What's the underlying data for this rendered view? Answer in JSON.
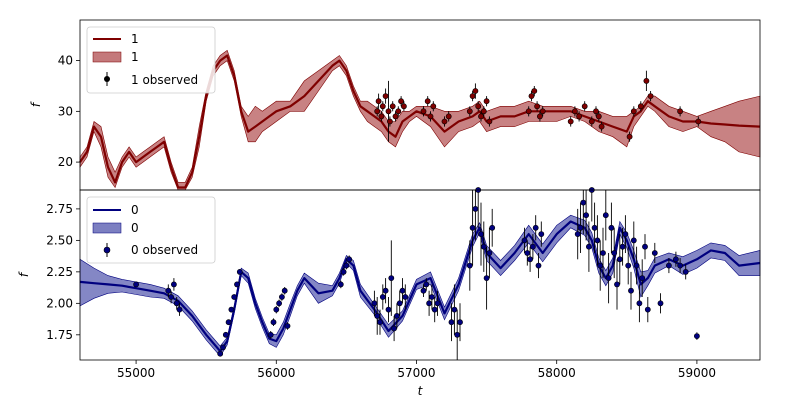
{
  "chart_data": [
    {
      "type": "line",
      "panel": "top",
      "ylabel": "f",
      "xlabel": "",
      "xlim": [
        54600,
        59450
      ],
      "ylim": [
        14.5,
        48
      ],
      "yticks": [
        "20",
        "30",
        "40"
      ],
      "ytick_values": [
        20,
        30,
        40
      ],
      "grid": false,
      "legend": {
        "placement": "top-left",
        "entries": [
          "1",
          "1",
          "1 observed"
        ]
      },
      "colors": {
        "line": "#7f0000",
        "band": "#b5585a",
        "points": "#7f0000"
      },
      "model": {
        "name": "1",
        "x": [
          54600,
          54650,
          54700,
          54750,
          54800,
          54850,
          54900,
          54950,
          55000,
          55050,
          55100,
          55150,
          55200,
          55250,
          55300,
          55350,
          55400,
          55450,
          55500,
          55550,
          55600,
          55650,
          55700,
          55750,
          55800,
          55850,
          55900,
          55950,
          56000,
          56100,
          56200,
          56300,
          56400,
          56450,
          56500,
          56550,
          56600,
          56650,
          56700,
          56750,
          56800,
          56850,
          56900,
          56950,
          57000,
          57100,
          57200,
          57300,
          57400,
          57450,
          57500,
          57600,
          57700,
          57800,
          57900,
          58000,
          58100,
          58200,
          58300,
          58400,
          58500,
          58550,
          58600,
          58650,
          58700,
          58800,
          58900,
          59000,
          59100,
          59200,
          59300,
          59450
        ],
        "y": [
          20,
          22,
          27,
          25,
          19,
          16,
          20,
          22,
          20,
          21,
          22,
          23,
          24,
          19,
          15,
          15,
          18,
          25,
          33,
          38,
          40,
          41,
          37,
          30,
          26,
          27,
          28,
          29,
          30,
          31,
          33,
          36,
          39,
          40,
          38,
          34,
          31,
          30,
          29,
          28,
          26,
          25,
          28,
          29,
          30,
          29,
          26,
          28,
          29,
          30,
          28,
          29,
          29,
          30,
          30,
          30,
          30,
          29,
          28,
          27,
          26,
          29,
          30,
          32,
          31,
          29,
          28,
          28,
          27.6,
          27.4,
          27.2,
          27
        ]
      },
      "band": {
        "name": "1",
        "upper": [
          21,
          23,
          28,
          27,
          21,
          18,
          21,
          23,
          21,
          22,
          23,
          24,
          25,
          20,
          16,
          16,
          19,
          27,
          34,
          39,
          41,
          42,
          38,
          31,
          29,
          31,
          30,
          31,
          32,
          32,
          36,
          38,
          40,
          41,
          39,
          35,
          32,
          32,
          31,
          30,
          28,
          28,
          30,
          30,
          31,
          31,
          30,
          30,
          31,
          32,
          30,
          31,
          31,
          32,
          31,
          31,
          31,
          30,
          30,
          29,
          29,
          30,
          31,
          33,
          33,
          31,
          30,
          29,
          30,
          31,
          32,
          33
        ],
        "lower": [
          19,
          21,
          26,
          23,
          17,
          15,
          19,
          21,
          19,
          20,
          21,
          22,
          23,
          18,
          14,
          14,
          17,
          23,
          32,
          37,
          39,
          40,
          36,
          29,
          24,
          24,
          26,
          27,
          28,
          30,
          30,
          34,
          38,
          39,
          37,
          33,
          30,
          28,
          27,
          26,
          24,
          23,
          26,
          28,
          29,
          27,
          23,
          26,
          27,
          28,
          26,
          27,
          27,
          28,
          28,
          28,
          29,
          28,
          26,
          25,
          23,
          27,
          29,
          31,
          30,
          27,
          26,
          27,
          25,
          24,
          22,
          21
        ]
      },
      "observed": {
        "name": "1 observed",
        "x": [
          56720,
          56730,
          56750,
          56760,
          56780,
          56800,
          56810,
          56830,
          56850,
          56870,
          56890,
          56910,
          57050,
          57080,
          57100,
          57120,
          57200,
          57230,
          57380,
          57400,
          57420,
          57440,
          57460,
          57480,
          57500,
          57520,
          57800,
          57820,
          57840,
          57860,
          57880,
          57900,
          58100,
          58130,
          58160,
          58200,
          58250,
          58280,
          58300,
          58320,
          58520,
          58550,
          58600,
          58640,
          58670,
          58880,
          59010
        ],
        "y": [
          30,
          32,
          29,
          31,
          33,
          30,
          28,
          31,
          29,
          30,
          32,
          31,
          30,
          32,
          29,
          31,
          28,
          29,
          30,
          33,
          34,
          31,
          29,
          30,
          32,
          28,
          30,
          33,
          34,
          31,
          29,
          30,
          28,
          30,
          29,
          31,
          28,
          30,
          29,
          27,
          25,
          30,
          31,
          36,
          33,
          30,
          28
        ],
        "yerr": [
          1,
          1.5,
          1,
          1,
          1.5,
          6,
          1,
          1,
          1,
          1,
          1,
          1,
          1,
          1,
          1,
          1,
          1,
          1,
          1,
          1,
          1.5,
          1,
          1,
          1,
          1,
          1,
          1,
          1,
          1,
          1,
          1,
          1,
          1,
          1,
          1,
          1,
          1,
          1,
          1,
          1,
          1,
          1,
          1,
          2,
          1,
          1,
          1
        ]
      }
    },
    {
      "type": "line",
      "panel": "bottom",
      "ylabel": "f",
      "xlabel": "t",
      "xlim": [
        54600,
        59450
      ],
      "ylim": [
        1.55,
        2.9
      ],
      "yticks": [
        "1.75",
        "2.00",
        "2.25",
        "2.50",
        "2.75"
      ],
      "ytick_values": [
        1.75,
        2.0,
        2.25,
        2.5,
        2.75
      ],
      "xticks": [
        "55000",
        "56000",
        "57000",
        "58000",
        "59000"
      ],
      "xtick_values": [
        55000,
        56000,
        57000,
        58000,
        59000
      ],
      "grid": false,
      "legend": {
        "placement": "top-left",
        "entries": [
          "0",
          "0",
          "0 observed"
        ]
      },
      "colors": {
        "line": "#00007f",
        "band": "#5b5fb2",
        "points": "#00007f"
      },
      "model": {
        "name": "0",
        "x": [
          54600,
          54700,
          54800,
          54900,
          55000,
          55100,
          55200,
          55300,
          55400,
          55500,
          55600,
          55650,
          55700,
          55750,
          55800,
          55850,
          55900,
          55950,
          56000,
          56050,
          56100,
          56150,
          56200,
          56300,
          56400,
          56450,
          56500,
          56550,
          56600,
          56700,
          56800,
          56900,
          57000,
          57100,
          57200,
          57300,
          57400,
          57450,
          57500,
          57600,
          57700,
          57800,
          57900,
          58000,
          58100,
          58200,
          58250,
          58300,
          58350,
          58400,
          58450,
          58500,
          58550,
          58600,
          58650,
          58700,
          58800,
          58900,
          59000,
          59100,
          59200,
          59300,
          59450
        ],
        "y": [
          2.17,
          2.16,
          2.15,
          2.14,
          2.12,
          2.1,
          2.08,
          2.02,
          1.9,
          1.75,
          1.62,
          1.7,
          1.95,
          2.25,
          2.2,
          2.0,
          1.85,
          1.72,
          1.7,
          1.8,
          1.95,
          2.1,
          2.2,
          2.08,
          2.1,
          2.2,
          2.35,
          2.3,
          2.1,
          1.95,
          1.78,
          1.9,
          2.15,
          2.2,
          1.92,
          2.15,
          2.5,
          2.6,
          2.4,
          2.28,
          2.4,
          2.55,
          2.4,
          2.55,
          2.65,
          2.6,
          2.5,
          2.3,
          2.2,
          2.3,
          2.6,
          2.5,
          2.35,
          2.15,
          2.2,
          2.3,
          2.35,
          2.3,
          2.35,
          2.42,
          2.4,
          2.3,
          2.32
        ]
      },
      "band": {
        "name": "0",
        "upper": [
          2.35,
          2.28,
          2.22,
          2.19,
          2.17,
          2.15,
          2.12,
          2.06,
          1.94,
          1.79,
          1.66,
          1.73,
          1.98,
          2.28,
          2.24,
          2.04,
          1.89,
          1.76,
          1.75,
          1.85,
          2.0,
          2.14,
          2.24,
          2.16,
          2.14,
          2.24,
          2.38,
          2.34,
          2.15,
          1.99,
          1.83,
          1.94,
          2.19,
          2.25,
          1.97,
          2.2,
          2.55,
          2.64,
          2.46,
          2.34,
          2.46,
          2.62,
          2.47,
          2.62,
          2.7,
          2.66,
          2.56,
          2.36,
          2.26,
          2.36,
          2.65,
          2.56,
          2.42,
          2.25,
          2.26,
          2.36,
          2.4,
          2.37,
          2.42,
          2.48,
          2.46,
          2.38,
          2.42
        ],
        "lower": [
          1.98,
          2.04,
          2.08,
          2.09,
          2.07,
          2.05,
          2.04,
          1.98,
          1.86,
          1.71,
          1.58,
          1.67,
          1.92,
          2.22,
          2.16,
          1.96,
          1.81,
          1.68,
          1.65,
          1.75,
          1.9,
          2.06,
          2.16,
          2.0,
          2.06,
          2.16,
          2.32,
          2.26,
          2.05,
          1.91,
          1.73,
          1.86,
          2.11,
          2.15,
          1.87,
          2.1,
          2.45,
          2.56,
          2.34,
          2.22,
          2.34,
          2.48,
          2.33,
          2.48,
          2.6,
          2.54,
          2.44,
          2.24,
          2.14,
          2.24,
          2.55,
          2.44,
          2.28,
          2.05,
          2.14,
          2.24,
          2.3,
          2.23,
          2.28,
          2.36,
          2.34,
          2.22,
          2.22
        ]
      },
      "observed": {
        "name": "0 observed",
        "x": [
          55000,
          55230,
          55250,
          55270,
          55290,
          55310,
          55600,
          55620,
          55640,
          55660,
          55680,
          55700,
          55720,
          55740,
          55960,
          55980,
          56000,
          56020,
          56040,
          56060,
          56080,
          56460,
          56480,
          56500,
          56520,
          56700,
          56720,
          56740,
          56760,
          56780,
          56800,
          56820,
          56840,
          56860,
          56880,
          56900,
          56920,
          57050,
          57070,
          57090,
          57110,
          57130,
          57150,
          57250,
          57270,
          57290,
          57310,
          57380,
          57400,
          57420,
          57440,
          57460,
          57480,
          57500,
          57520,
          57540,
          57770,
          57790,
          57810,
          57830,
          57850,
          57870,
          57890,
          58150,
          58170,
          58190,
          58210,
          58230,
          58250,
          58270,
          58290,
          58310,
          58330,
          58350,
          58370,
          58390,
          58410,
          58430,
          58450,
          58470,
          58490,
          58510,
          58530,
          58550,
          58570,
          58590,
          58610,
          58630,
          58650,
          58700,
          58740,
          58800,
          58850,
          58880,
          58920,
          59000
        ],
        "y": [
          2.15,
          2.1,
          2.05,
          2.15,
          2.0,
          1.95,
          1.6,
          1.65,
          1.75,
          1.85,
          1.95,
          2.05,
          2.15,
          2.25,
          1.75,
          1.85,
          1.95,
          2.0,
          2.05,
          2.1,
          1.82,
          2.15,
          2.25,
          2.3,
          2.35,
          2.0,
          1.9,
          1.85,
          2.05,
          2.1,
          1.95,
          2.2,
          1.8,
          1.9,
          2.0,
          2.1,
          2.05,
          2.1,
          2.15,
          2.0,
          2.05,
          1.95,
          2.0,
          1.85,
          1.95,
          1.75,
          1.85,
          2.3,
          2.6,
          2.75,
          2.9,
          2.55,
          2.45,
          2.2,
          2.4,
          2.6,
          2.5,
          2.4,
          2.35,
          2.45,
          2.6,
          2.3,
          2.55,
          2.55,
          2.6,
          2.8,
          2.7,
          2.45,
          2.9,
          2.6,
          2.5,
          2.3,
          2.4,
          2.7,
          2.2,
          2.6,
          2.4,
          2.15,
          2.35,
          2.45,
          2.55,
          2.3,
          2.1,
          2.5,
          2.3,
          2.0,
          2.2,
          2.45,
          1.95,
          2.4,
          2.0,
          2.3,
          2.35,
          2.3,
          2.25,
          1.74
        ],
        "yerr": [
          0.02,
          0.05,
          0.05,
          0.05,
          0.05,
          0.05,
          0.02,
          0.02,
          0.02,
          0.02,
          0.02,
          0.02,
          0.02,
          0.02,
          0.03,
          0.03,
          0.03,
          0.03,
          0.03,
          0.03,
          0.03,
          0.03,
          0.03,
          0.03,
          0.03,
          0.1,
          0.15,
          0.1,
          0.1,
          0.1,
          0.1,
          0.3,
          0.1,
          0.1,
          0.1,
          0.1,
          0.1,
          0.05,
          0.05,
          0.1,
          0.1,
          0.1,
          0.1,
          0.15,
          0.2,
          0.2,
          0.15,
          0.2,
          0.3,
          0.25,
          0.3,
          0.25,
          0.2,
          0.25,
          0.2,
          0.15,
          0.1,
          0.1,
          0.1,
          0.1,
          0.1,
          0.1,
          0.1,
          0.2,
          0.2,
          0.25,
          0.2,
          0.2,
          0.25,
          0.2,
          0.2,
          0.2,
          0.2,
          0.2,
          0.2,
          0.2,
          0.2,
          0.2,
          0.2,
          0.15,
          0.15,
          0.15,
          0.15,
          0.15,
          0.15,
          0.15,
          0.15,
          0.1,
          0.1,
          0.08,
          0.08,
          0.06,
          0.06,
          0.06,
          0.06,
          0.03
        ]
      }
    }
  ]
}
